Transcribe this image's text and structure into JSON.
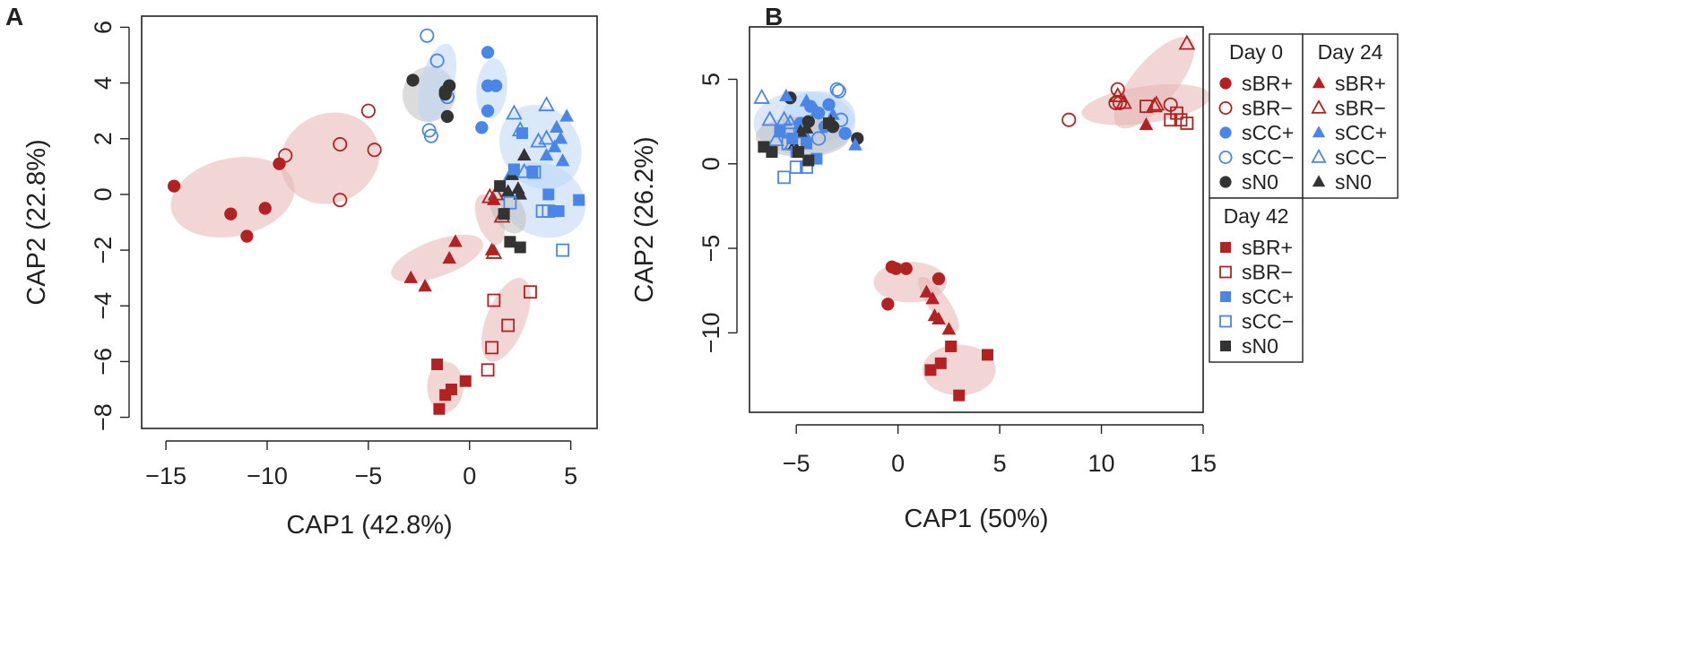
{
  "colors": {
    "red": "#b22222",
    "blue": "#4a86e8",
    "black": "#333333",
    "red_ellipse": "#e8b4b4",
    "blue_ellipse": "#bcd5f5",
    "grey_ellipse": "#bdbdbd"
  },
  "chart_data": [
    {
      "panel": "A",
      "type": "scatter",
      "xlabel": "CAP1 (42.8%)",
      "ylabel": "CAP2 (22.8%)",
      "xlim": [
        -16.2,
        6.3
      ],
      "ylim": [
        -8.4,
        6.4
      ],
      "xticks": [
        -15,
        -10,
        -5,
        0,
        5
      ],
      "yticks": [
        -8,
        -6,
        -4,
        -2,
        0,
        2,
        4,
        6
      ],
      "xtick_labels": [
        "−15",
        "−10",
        "−5",
        "0",
        "5"
      ],
      "ytick_labels": [
        "−8",
        "−6",
        "−4",
        "−2",
        "0",
        "2",
        "4",
        "6"
      ],
      "ellipses": [
        {
          "color": "red",
          "cx": -11.7,
          "cy": -0.1,
          "rx": 3.1,
          "ry": 1.4,
          "angle": 12
        },
        {
          "color": "red",
          "cx": -6.9,
          "cy": 1.3,
          "rx": 2.5,
          "ry": 1.6,
          "angle": 25
        },
        {
          "color": "red",
          "cx": -1.6,
          "cy": -2.3,
          "rx": 2.4,
          "ry": 0.65,
          "angle": 20
        },
        {
          "color": "red",
          "cx": 1.0,
          "cy": -0.9,
          "rx": 1.3,
          "ry": 0.45,
          "angle": -70
        },
        {
          "color": "red",
          "cx": 1.8,
          "cy": -4.5,
          "rx": 2.2,
          "ry": 0.7,
          "angle": 68
        },
        {
          "color": "red",
          "cx": -1.2,
          "cy": -6.9,
          "rx": 0.9,
          "ry": 0.9,
          "angle": 0
        },
        {
          "color": "grey",
          "cx": -2.0,
          "cy": 3.6,
          "rx": 1.3,
          "ry": 1.0,
          "angle": -20
        },
        {
          "color": "blue",
          "cx": -1.6,
          "cy": 4.0,
          "rx": 2.0,
          "ry": 0.6,
          "angle": 75
        },
        {
          "color": "blue",
          "cx": 1.1,
          "cy": 3.8,
          "rx": 1.5,
          "ry": 0.55,
          "angle": 85
        },
        {
          "color": "blue",
          "cx": 3.5,
          "cy": 1.7,
          "rx": 1.9,
          "ry": 1.6,
          "angle": 40
        },
        {
          "color": "blue",
          "cx": 3.6,
          "cy": -0.2,
          "rx": 2.2,
          "ry": 1.3,
          "angle": -25
        },
        {
          "color": "grey",
          "cx": 1.9,
          "cy": -0.6,
          "rx": 1.2,
          "ry": 0.55,
          "angle": -60
        }
      ],
      "series": [
        {
          "name": "Day 0 sBR+",
          "shape": "circle",
          "color": "red",
          "filled": true,
          "x": [
            -14.6,
            -11.8,
            -11.0,
            -10.1,
            -9.4
          ],
          "y": [
            0.3,
            -0.7,
            -1.5,
            -0.5,
            1.1
          ]
        },
        {
          "name": "Day 0 sBR-",
          "shape": "circle",
          "color": "red",
          "filled": false,
          "x": [
            -9.1,
            -6.4,
            -6.4,
            -5.0,
            -4.7
          ],
          "y": [
            1.4,
            1.8,
            -0.2,
            3.0,
            1.6
          ]
        },
        {
          "name": "Day 0 sCC+",
          "shape": "circle",
          "color": "blue",
          "filled": true,
          "x": [
            0.6,
            0.9,
            0.9,
            1.3,
            0.9
          ],
          "y": [
            2.4,
            3.0,
            3.9,
            3.9,
            5.1
          ]
        },
        {
          "name": "Day 0 sCC-",
          "shape": "circle",
          "color": "blue",
          "filled": false,
          "x": [
            -2.1,
            -1.9,
            -1.6,
            -1.1,
            -2.0
          ],
          "y": [
            5.7,
            2.1,
            4.8,
            3.5,
            2.3
          ]
        },
        {
          "name": "Day 0 sN0",
          "shape": "circle",
          "color": "black",
          "filled": true,
          "x": [
            -2.8,
            -1.2,
            -1.0,
            -1.1,
            -1.2
          ],
          "y": [
            4.1,
            3.6,
            3.9,
            2.8,
            3.7
          ]
        },
        {
          "name": "Day 24 sBR+",
          "shape": "triangle",
          "color": "red",
          "filled": true,
          "x": [
            -2.9,
            -2.2,
            -1.0,
            -0.7,
            1.1,
            1.2
          ],
          "y": [
            -3.0,
            -3.3,
            -2.3,
            -1.7,
            -2.0,
            -0.2
          ]
        },
        {
          "name": "Day 24 sBR-",
          "shape": "triangle",
          "color": "red",
          "filled": false,
          "x": [
            1.0,
            1.3,
            1.6,
            1.2
          ],
          "y": [
            -0.1,
            0.0,
            -0.8,
            -2.1
          ]
        },
        {
          "name": "Day 24 sCC+",
          "shape": "triangle",
          "color": "blue",
          "filled": true,
          "x": [
            4.3,
            4.5,
            4.8,
            4.2,
            3.8,
            4.6,
            2.0
          ],
          "y": [
            2.4,
            2.0,
            2.8,
            1.7,
            1.4,
            1.2,
            0.7
          ]
        },
        {
          "name": "Day 24 sCC-",
          "shape": "triangle",
          "color": "blue",
          "filled": false,
          "x": [
            2.2,
            2.5,
            3.8,
            3.4,
            3.8,
            2.7
          ],
          "y": [
            2.9,
            2.3,
            3.2,
            1.9,
            2.0,
            0.8
          ]
        },
        {
          "name": "Day 24 sN0",
          "shape": "triangle",
          "color": "black",
          "filled": true,
          "x": [
            1.9,
            2.4,
            2.7,
            2.1,
            2.5
          ],
          "y": [
            0.1,
            0.2,
            1.4,
            0.7,
            0.0
          ]
        },
        {
          "name": "Day 42 sBR+",
          "shape": "square",
          "color": "red",
          "filled": true,
          "x": [
            -1.6,
            -1.2,
            -0.9,
            -1.5,
            -0.2
          ],
          "y": [
            -6.1,
            -7.2,
            -7.0,
            -7.7,
            -6.7
          ]
        },
        {
          "name": "Day 42 sBR-",
          "shape": "square",
          "color": "red",
          "filled": false,
          "x": [
            0.9,
            1.1,
            1.2,
            1.9,
            3.0
          ],
          "y": [
            -6.3,
            -5.5,
            -3.8,
            -4.7,
            -3.5
          ]
        },
        {
          "name": "Day 42 sCC+",
          "shape": "square",
          "color": "blue",
          "filled": true,
          "x": [
            2.2,
            2.6,
            3.1,
            4.2,
            5.4,
            4.4,
            3.9
          ],
          "y": [
            0.9,
            2.2,
            0.8,
            -0.6,
            -0.2,
            -0.6,
            0.0
          ]
        },
        {
          "name": "Day 42 sCC-",
          "shape": "square",
          "color": "blue",
          "filled": false,
          "x": [
            2.0,
            3.6,
            3.2,
            3.9,
            4.6
          ],
          "y": [
            -0.3,
            -0.6,
            0.8,
            -0.6,
            -2.0
          ]
        },
        {
          "name": "Day 42 sN0",
          "shape": "square",
          "color": "black",
          "filled": true,
          "x": [
            1.5,
            1.7,
            2.0,
            2.5
          ],
          "y": [
            0.3,
            -0.7,
            -1.7,
            -1.9
          ]
        }
      ]
    },
    {
      "panel": "B",
      "type": "scatter",
      "xlabel": "CAP1 (50%)",
      "ylabel": "CAP2 (26.2%)",
      "xlim": [
        -7.3,
        15.0
      ],
      "ylim": [
        -14.7,
        8.1
      ],
      "xticks": [
        -5,
        0,
        5,
        10,
        15
      ],
      "yticks": [
        -10,
        -5,
        0,
        5
      ],
      "xtick_labels": [
        "−5",
        "0",
        "5",
        "10",
        "15"
      ],
      "ytick_labels": [
        "−10",
        "−5",
        "0",
        "5"
      ],
      "ellipses": [
        {
          "color": "red",
          "cx": 12.2,
          "cy": 3.5,
          "rx": 3.2,
          "ry": 1.1,
          "angle": 8
        },
        {
          "color": "red",
          "cx": 12.6,
          "cy": 4.8,
          "rx": 2.8,
          "ry": 1.3,
          "angle": 50
        },
        {
          "color": "red",
          "cx": 0.6,
          "cy": -7.0,
          "rx": 1.8,
          "ry": 1.2,
          "angle": 0
        },
        {
          "color": "red",
          "cx": 2.0,
          "cy": -8.3,
          "rx": 1.6,
          "ry": 0.6,
          "angle": -55
        },
        {
          "color": "red",
          "cx": 3.0,
          "cy": -12.2,
          "rx": 1.8,
          "ry": 1.5,
          "angle": 0
        },
        {
          "color": "blue",
          "cx": -4.6,
          "cy": 2.4,
          "rx": 2.5,
          "ry": 1.9,
          "angle": 0
        },
        {
          "color": "blue",
          "cx": -3.9,
          "cy": 2.8,
          "rx": 1.8,
          "ry": 1.5,
          "angle": 0
        },
        {
          "color": "grey",
          "cx": -4.7,
          "cy": 1.6,
          "rx": 2.3,
          "ry": 1.2,
          "angle": 0
        }
      ],
      "series": [
        {
          "name": "Day 0 sBR+",
          "shape": "circle",
          "color": "red",
          "filled": true,
          "x": [
            -0.3,
            -0.1,
            0.4,
            2.0,
            -0.5
          ],
          "y": [
            -6.1,
            -6.2,
            -6.2,
            -6.8,
            -8.3
          ]
        },
        {
          "name": "Day 0 sBR-",
          "shape": "circle",
          "color": "red",
          "filled": false,
          "x": [
            8.4,
            10.8,
            10.9,
            10.7,
            13.4
          ],
          "y": [
            2.6,
            4.4,
            3.6,
            3.6,
            3.5
          ]
        },
        {
          "name": "Day 0 sCC+",
          "shape": "circle",
          "color": "blue",
          "filled": true,
          "x": [
            -4.3,
            -3.9,
            -3.4,
            -4.8,
            -3.6,
            -2.6
          ],
          "y": [
            3.4,
            3.0,
            3.5,
            2.4,
            2.2,
            1.8
          ]
        },
        {
          "name": "Day 0 sCC-",
          "shape": "circle",
          "color": "blue",
          "filled": false,
          "x": [
            -3.0,
            -2.9,
            -2.8,
            -4.8,
            -3.9
          ],
          "y": [
            4.4,
            4.3,
            2.6,
            2.0,
            1.5
          ]
        },
        {
          "name": "Day 0 sN0",
          "shape": "circle",
          "color": "black",
          "filled": true,
          "x": [
            -5.3,
            -4.4,
            -2.0,
            -3.2
          ],
          "y": [
            3.9,
            2.5,
            1.5,
            2.2
          ]
        },
        {
          "name": "Day 24 sBR+",
          "shape": "triangle",
          "color": "red",
          "filled": true,
          "x": [
            1.4,
            1.7,
            1.8,
            2.0,
            2.5,
            12.2
          ],
          "y": [
            -7.6,
            -8.0,
            -9.0,
            -9.2,
            -9.8,
            2.3
          ]
        },
        {
          "name": "Day 24 sBR-",
          "shape": "triangle",
          "color": "red",
          "filled": false,
          "x": [
            10.8,
            11.1,
            12.6,
            12.7,
            14.2
          ],
          "y": [
            4.0,
            3.6,
            3.4,
            3.5,
            7.1
          ]
        },
        {
          "name": "Day 24 sCC+",
          "shape": "triangle",
          "color": "blue",
          "filled": true,
          "x": [
            -5.5,
            -4.5,
            -4.0,
            -3.2,
            -2.1,
            -4.6
          ],
          "y": [
            4.0,
            3.7,
            3.1,
            2.9,
            1.1,
            1.8
          ]
        },
        {
          "name": "Day 24 sCC-",
          "shape": "triangle",
          "color": "blue",
          "filled": false,
          "x": [
            -6.7,
            -6.3,
            -5.6,
            -5.3,
            -6.0,
            -5.2
          ],
          "y": [
            3.9,
            2.6,
            2.6,
            2.4,
            1.4,
            1.2
          ]
        },
        {
          "name": "Day 24 sN0",
          "shape": "triangle",
          "color": "black",
          "filled": true,
          "x": [
            -4.8,
            -4.5,
            -3.3,
            -5.1
          ],
          "y": [
            1.9,
            2.1,
            2.5,
            1.1
          ]
        },
        {
          "name": "Day 42 sBR+",
          "shape": "square",
          "color": "red",
          "filled": true,
          "x": [
            1.6,
            2.1,
            2.6,
            3.0,
            4.4
          ],
          "y": [
            -12.2,
            -11.8,
            -10.8,
            -13.7,
            -11.3
          ]
        },
        {
          "name": "Day 42 sBR-",
          "shape": "square",
          "color": "red",
          "filled": false,
          "x": [
            12.2,
            13.4,
            13.7,
            13.9,
            14.2
          ],
          "y": [
            3.4,
            2.6,
            3.0,
            2.6,
            2.4
          ]
        },
        {
          "name": "Day 42 sCC+",
          "shape": "square",
          "color": "blue",
          "filled": true,
          "x": [
            -5.8,
            -5.2,
            -4.5,
            -5.0,
            -4.0
          ],
          "y": [
            1.9,
            1.5,
            1.2,
            0.7,
            0.3
          ]
        },
        {
          "name": "Day 42 sCC-",
          "shape": "square",
          "color": "blue",
          "filled": false,
          "x": [
            -5.3,
            -5.4,
            -5.6,
            -5.0,
            -4.5
          ],
          "y": [
            2.0,
            1.2,
            -0.8,
            -0.2,
            -0.2
          ]
        },
        {
          "name": "Day 42 sN0",
          "shape": "square",
          "color": "black",
          "filled": true,
          "x": [
            -6.6,
            -6.2,
            -4.9,
            -4.4,
            -3.4
          ],
          "y": [
            1.0,
            0.7,
            0.7,
            0.2,
            2.4
          ]
        }
      ]
    }
  ],
  "legend": {
    "groups": [
      {
        "title": "Day 0",
        "shape": "circle",
        "entries": [
          {
            "label": "sBR+",
            "color": "red",
            "filled": true
          },
          {
            "label": "sBR−",
            "color": "red",
            "filled": false
          },
          {
            "label": "sCC+",
            "color": "blue",
            "filled": true
          },
          {
            "label": "sCC−",
            "color": "blue",
            "filled": false
          },
          {
            "label": "sN0",
            "color": "black",
            "filled": true
          }
        ]
      },
      {
        "title": "Day 24",
        "shape": "triangle",
        "entries": [
          {
            "label": "sBR+",
            "color": "red",
            "filled": true
          },
          {
            "label": "sBR−",
            "color": "red",
            "filled": false
          },
          {
            "label": "sCC+",
            "color": "blue",
            "filled": true
          },
          {
            "label": "sCC−",
            "color": "blue",
            "filled": false
          },
          {
            "label": "sN0",
            "color": "black",
            "filled": true
          }
        ]
      },
      {
        "title": "Day 42",
        "shape": "square",
        "entries": [
          {
            "label": "sBR+",
            "color": "red",
            "filled": true
          },
          {
            "label": "sBR−",
            "color": "red",
            "filled": false
          },
          {
            "label": "sCC+",
            "color": "blue",
            "filled": true
          },
          {
            "label": "sCC−",
            "color": "blue",
            "filled": false
          },
          {
            "label": "sN0",
            "color": "black",
            "filled": true
          }
        ]
      }
    ]
  }
}
